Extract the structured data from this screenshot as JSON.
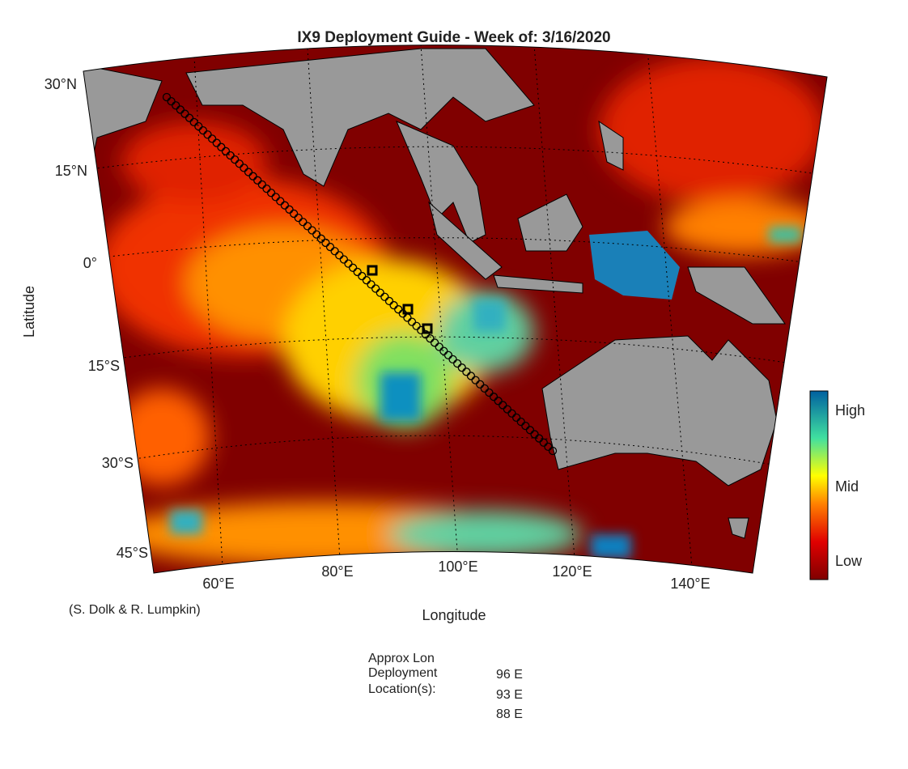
{
  "title": "IX9 Deployment Guide - Week of: 3/16/2020",
  "latitude_labels": [
    "30°N",
    "15°N",
    "0°",
    "15°S",
    "30°S",
    "45°S"
  ],
  "longitude_labels": [
    "60°E",
    "80°E",
    "100°E",
    "120°E",
    "140°E"
  ],
  "y_axis_label": "Latitude",
  "x_axis_label": "Longitude",
  "colorbar_labels": [
    "High",
    "Mid",
    "Low"
  ],
  "credit": "(S. Dolk & R. Lumpkin)",
  "deployment_heading": [
    "Approx Lon",
    "Deployment",
    "Location(s):"
  ],
  "deployment_locations": [
    "96 E",
    "93 E",
    "88 E"
  ]
}
